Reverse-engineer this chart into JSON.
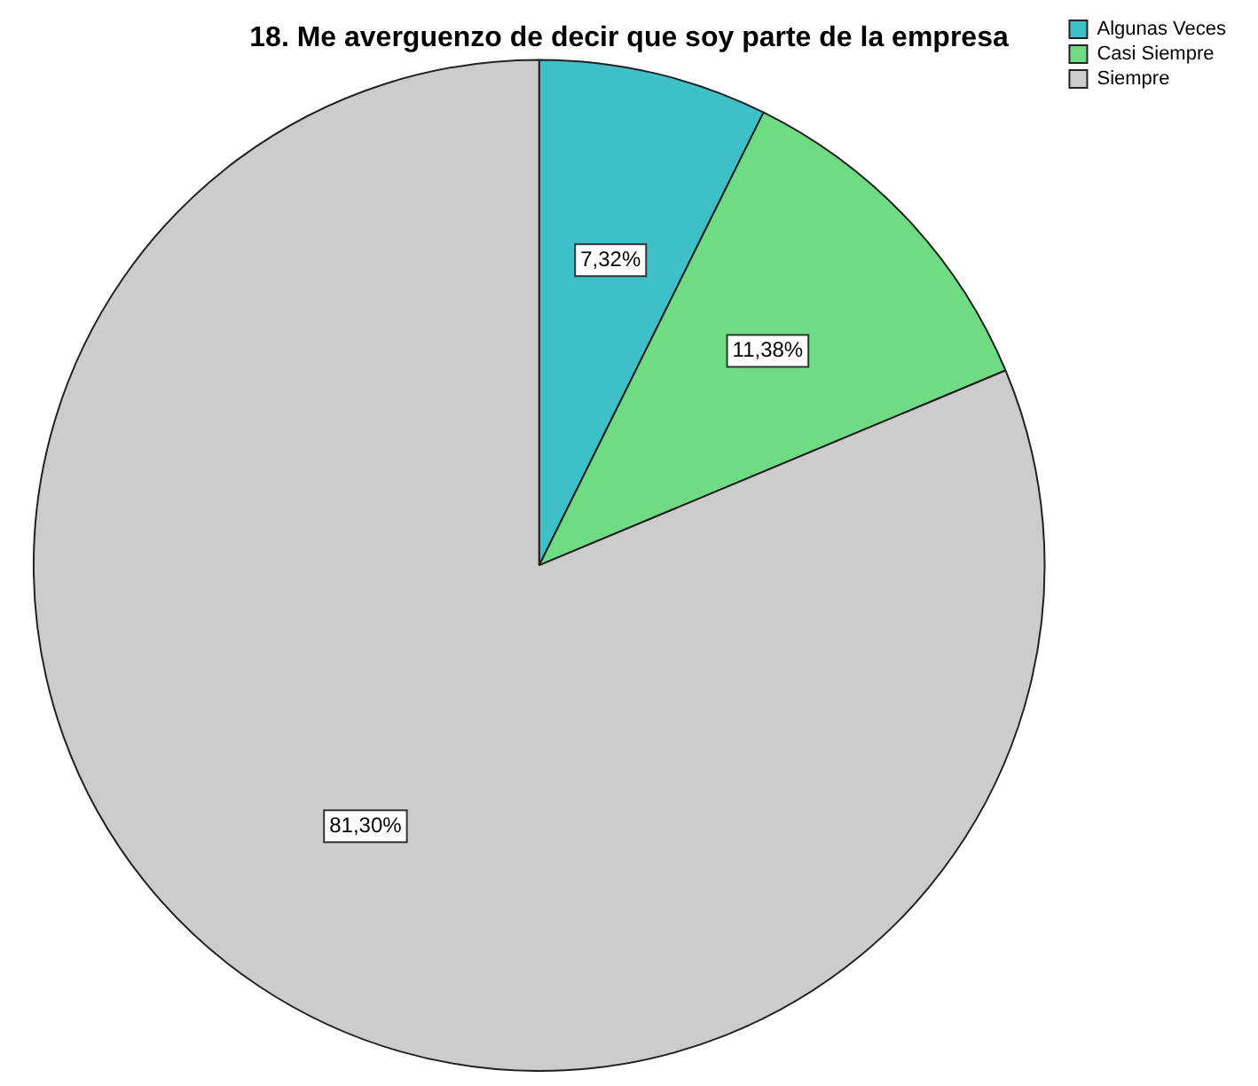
{
  "chart_data": {
    "type": "pie",
    "title": "18. Me averguenzo de decir que soy parte de la empresa",
    "categories": [
      "Algunas Veces",
      "Casi Siempre",
      "Siempre"
    ],
    "values": [
      7.32,
      11.38,
      81.3
    ],
    "value_labels": [
      "7,32%",
      "11,38%",
      "81,30%"
    ],
    "colors": [
      "#3fbfc8",
      "#6fdc84",
      "#cccccc"
    ],
    "legend": "top right"
  }
}
